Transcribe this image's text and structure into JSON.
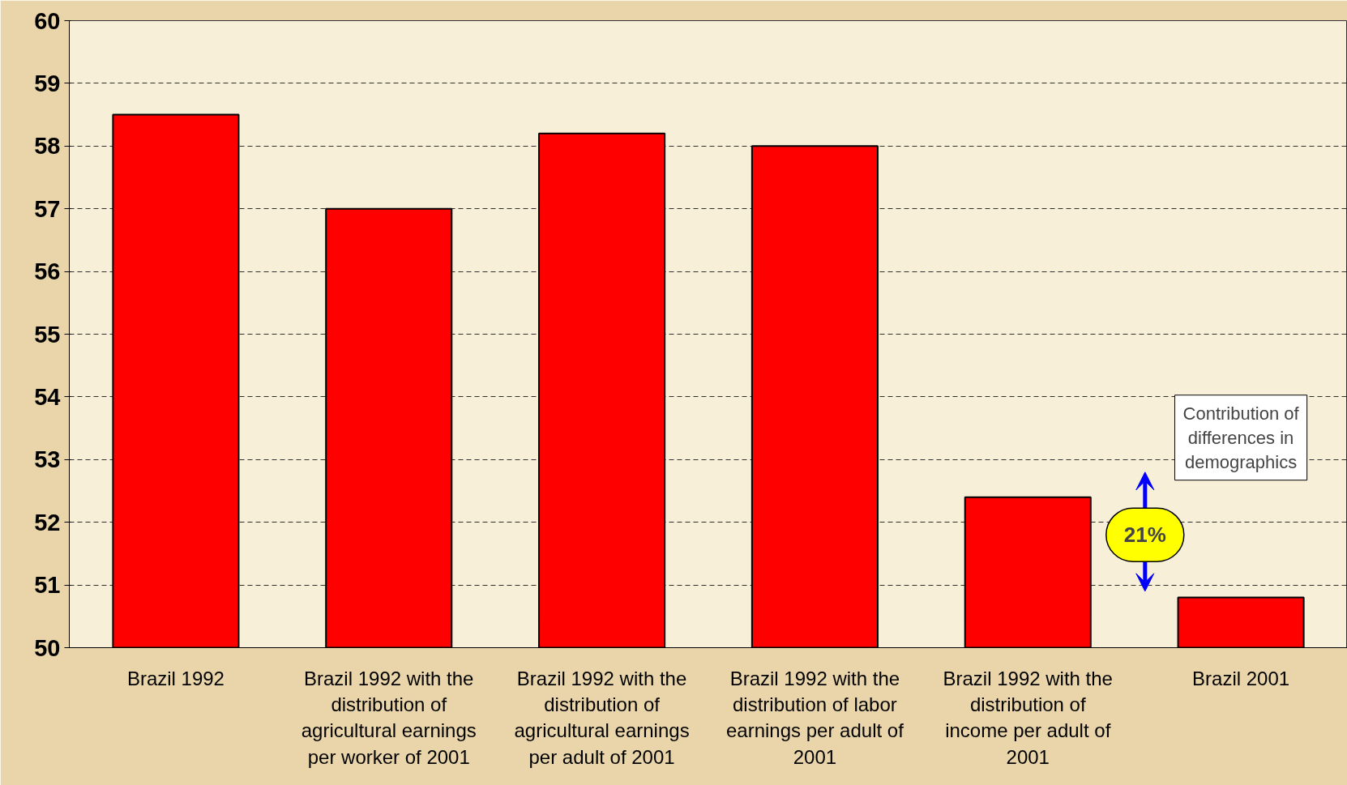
{
  "chart_data": {
    "type": "bar",
    "categories": [
      "Brazil 1992",
      "Brazil 1992 with the distribution of agricultural earnings per worker of 2001",
      "Brazil 1992 with the distribution of agricultural earnings per adult of 2001",
      "Brazil 1992 with the distribution of labor earnings per adult of 2001",
      "Brazil 1992 with the distribution of income per adult of 2001",
      "Brazil 2001"
    ],
    "values": [
      58.5,
      57.0,
      58.2,
      58.0,
      52.4,
      50.8
    ],
    "color": "#ff0000",
    "ylim": [
      50,
      60
    ],
    "yticks": [
      50,
      51,
      52,
      53,
      54,
      55,
      56,
      57,
      58,
      59,
      60
    ],
    "grid": "y",
    "annotations": [
      "Contribution of differences in demographics",
      "21%"
    ]
  }
}
